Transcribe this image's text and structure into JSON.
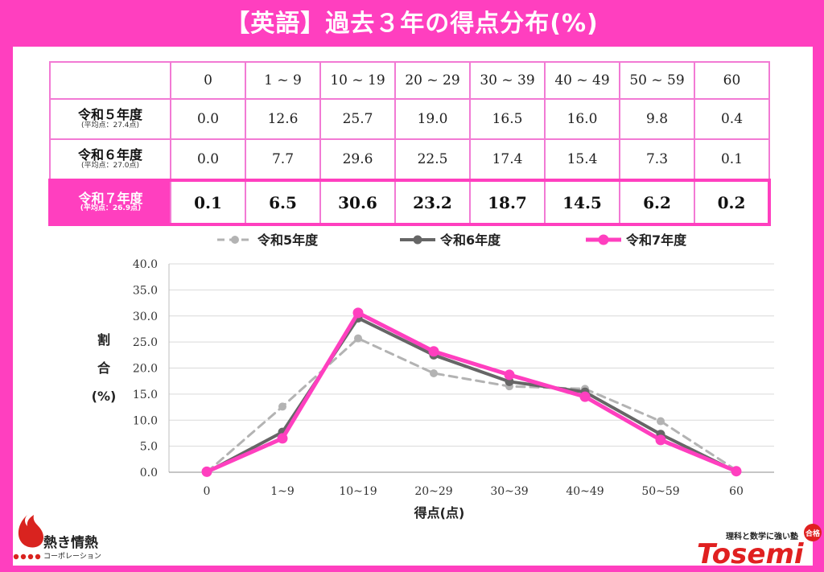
{
  "title": "【英語】過去３年の得点分布(%)",
  "table": {
    "columns": [
      "0",
      "1 ~ 9",
      "10 ~ 19",
      "20 ~ 29",
      "30 ~ 39",
      "40 ~ 49",
      "50 ~ 59",
      "60"
    ],
    "rows": [
      {
        "label": "令和５年度",
        "sub": "(平均点：27.4点)",
        "values": [
          "0.0",
          "12.6",
          "25.7",
          "19.0",
          "16.5",
          "16.0",
          "9.8",
          "0.4"
        ]
      },
      {
        "label": "令和６年度",
        "sub": "(平均点：27.0点)",
        "values": [
          "0.0",
          "7.7",
          "29.6",
          "22.5",
          "17.4",
          "15.4",
          "7.3",
          "0.1"
        ]
      },
      {
        "label": "令和７年度",
        "sub": "(平均点：26.9点)",
        "values": [
          "0.1",
          "6.5",
          "30.6",
          "23.2",
          "18.7",
          "14.5",
          "6.2",
          "0.2"
        ]
      }
    ]
  },
  "chart_data": {
    "type": "line",
    "categories": [
      "0",
      "1~9",
      "10~19",
      "20~29",
      "30~39",
      "40~49",
      "50~59",
      "60"
    ],
    "series": [
      {
        "name": "令和5年度",
        "values": [
          0.0,
          12.6,
          25.7,
          19.0,
          16.5,
          16.0,
          9.8,
          0.4
        ],
        "color": "#b3b3b3",
        "dashed": true
      },
      {
        "name": "令和6年度",
        "values": [
          0.0,
          7.7,
          29.6,
          22.5,
          17.4,
          15.4,
          7.3,
          0.1
        ],
        "color": "#666666",
        "dashed": false
      },
      {
        "name": "令和7年度",
        "values": [
          0.1,
          6.5,
          30.6,
          23.2,
          18.7,
          14.5,
          6.2,
          0.2
        ],
        "color": "#ff3fbf",
        "dashed": false
      }
    ],
    "ylim": [
      0,
      40
    ],
    "yticks": [
      "0.0",
      "5.0",
      "10.0",
      "15.0",
      "20.0",
      "25.0",
      "30.0",
      "35.0",
      "40.0"
    ],
    "ylabel": [
      "割",
      "合",
      "(%)"
    ],
    "xlabel": "得点(点)",
    "grid": true,
    "legend": "top"
  },
  "logos": {
    "left_main": "熱き情熱",
    "left_sub": "コーポレーション",
    "right_tag": "理科と数学に強い塾",
    "right_badge": "合格",
    "right_brand": "Tosemi"
  },
  "colors": {
    "accent": "#ff3fbf",
    "table_border": "#f27ad4"
  }
}
